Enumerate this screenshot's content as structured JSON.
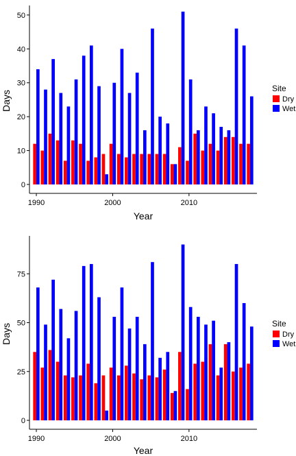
{
  "chart_data": [
    {
      "type": "bar",
      "xlabel": "Year",
      "ylabel": "Days",
      "ylim": [
        0,
        52
      ],
      "yticks": [
        0,
        10,
        20,
        30,
        40,
        50
      ],
      "xticks": [
        1990,
        2000,
        2010
      ],
      "legend": {
        "title": "Site",
        "position": "right"
      },
      "x": [
        1990,
        1991,
        1992,
        1993,
        1994,
        1995,
        1996,
        1997,
        1998,
        1999,
        2000,
        2001,
        2002,
        2003,
        2004,
        2005,
        2006,
        2007,
        2008,
        2009,
        2010,
        2011,
        2012,
        2013,
        2014,
        2015,
        2016,
        2017,
        2018
      ],
      "series": [
        {
          "name": "Dry",
          "color": "#ff0000",
          "values": [
            12,
            10,
            15,
            13,
            7,
            13,
            12,
            7,
            8,
            9,
            12,
            9,
            8,
            9,
            9,
            9,
            9,
            9,
            6,
            11,
            7,
            15,
            10,
            12,
            10,
            14,
            14,
            12,
            12
          ]
        },
        {
          "name": "Wet",
          "color": "#0000ff",
          "values": [
            34,
            28,
            37,
            27,
            23,
            31,
            38,
            41,
            29,
            3,
            30,
            40,
            27,
            33,
            16,
            46,
            20,
            18,
            6,
            51,
            31,
            16,
            23,
            21,
            17,
            16,
            46,
            41,
            26
          ]
        }
      ]
    },
    {
      "type": "bar",
      "xlabel": "Year",
      "ylabel": "Days",
      "ylim": [
        0,
        93
      ],
      "yticks": [
        0,
        25,
        50,
        75
      ],
      "xticks": [
        1990,
        2000,
        2010
      ],
      "legend": {
        "title": "Site",
        "position": "right"
      },
      "x": [
        1990,
        1991,
        1992,
        1993,
        1994,
        1995,
        1996,
        1997,
        1998,
        1999,
        2000,
        2001,
        2002,
        2003,
        2004,
        2005,
        2006,
        2007,
        2008,
        2009,
        2010,
        2011,
        2012,
        2013,
        2014,
        2015,
        2016,
        2017,
        2018
      ],
      "series": [
        {
          "name": "Dry",
          "color": "#ff0000",
          "values": [
            35,
            27,
            36,
            30,
            23,
            22,
            23,
            29,
            19,
            23,
            27,
            23,
            28,
            24,
            21,
            23,
            22,
            26,
            14,
            35,
            16,
            29,
            30,
            39,
            23,
            39,
            25,
            27,
            29
          ]
        },
        {
          "name": "Wet",
          "color": "#0000ff",
          "values": [
            68,
            49,
            72,
            57,
            42,
            56,
            79,
            80,
            63,
            5,
            53,
            68,
            47,
            53,
            39,
            81,
            32,
            35,
            15,
            90,
            58,
            53,
            49,
            51,
            27,
            40,
            80,
            60,
            48
          ]
        }
      ]
    }
  ]
}
